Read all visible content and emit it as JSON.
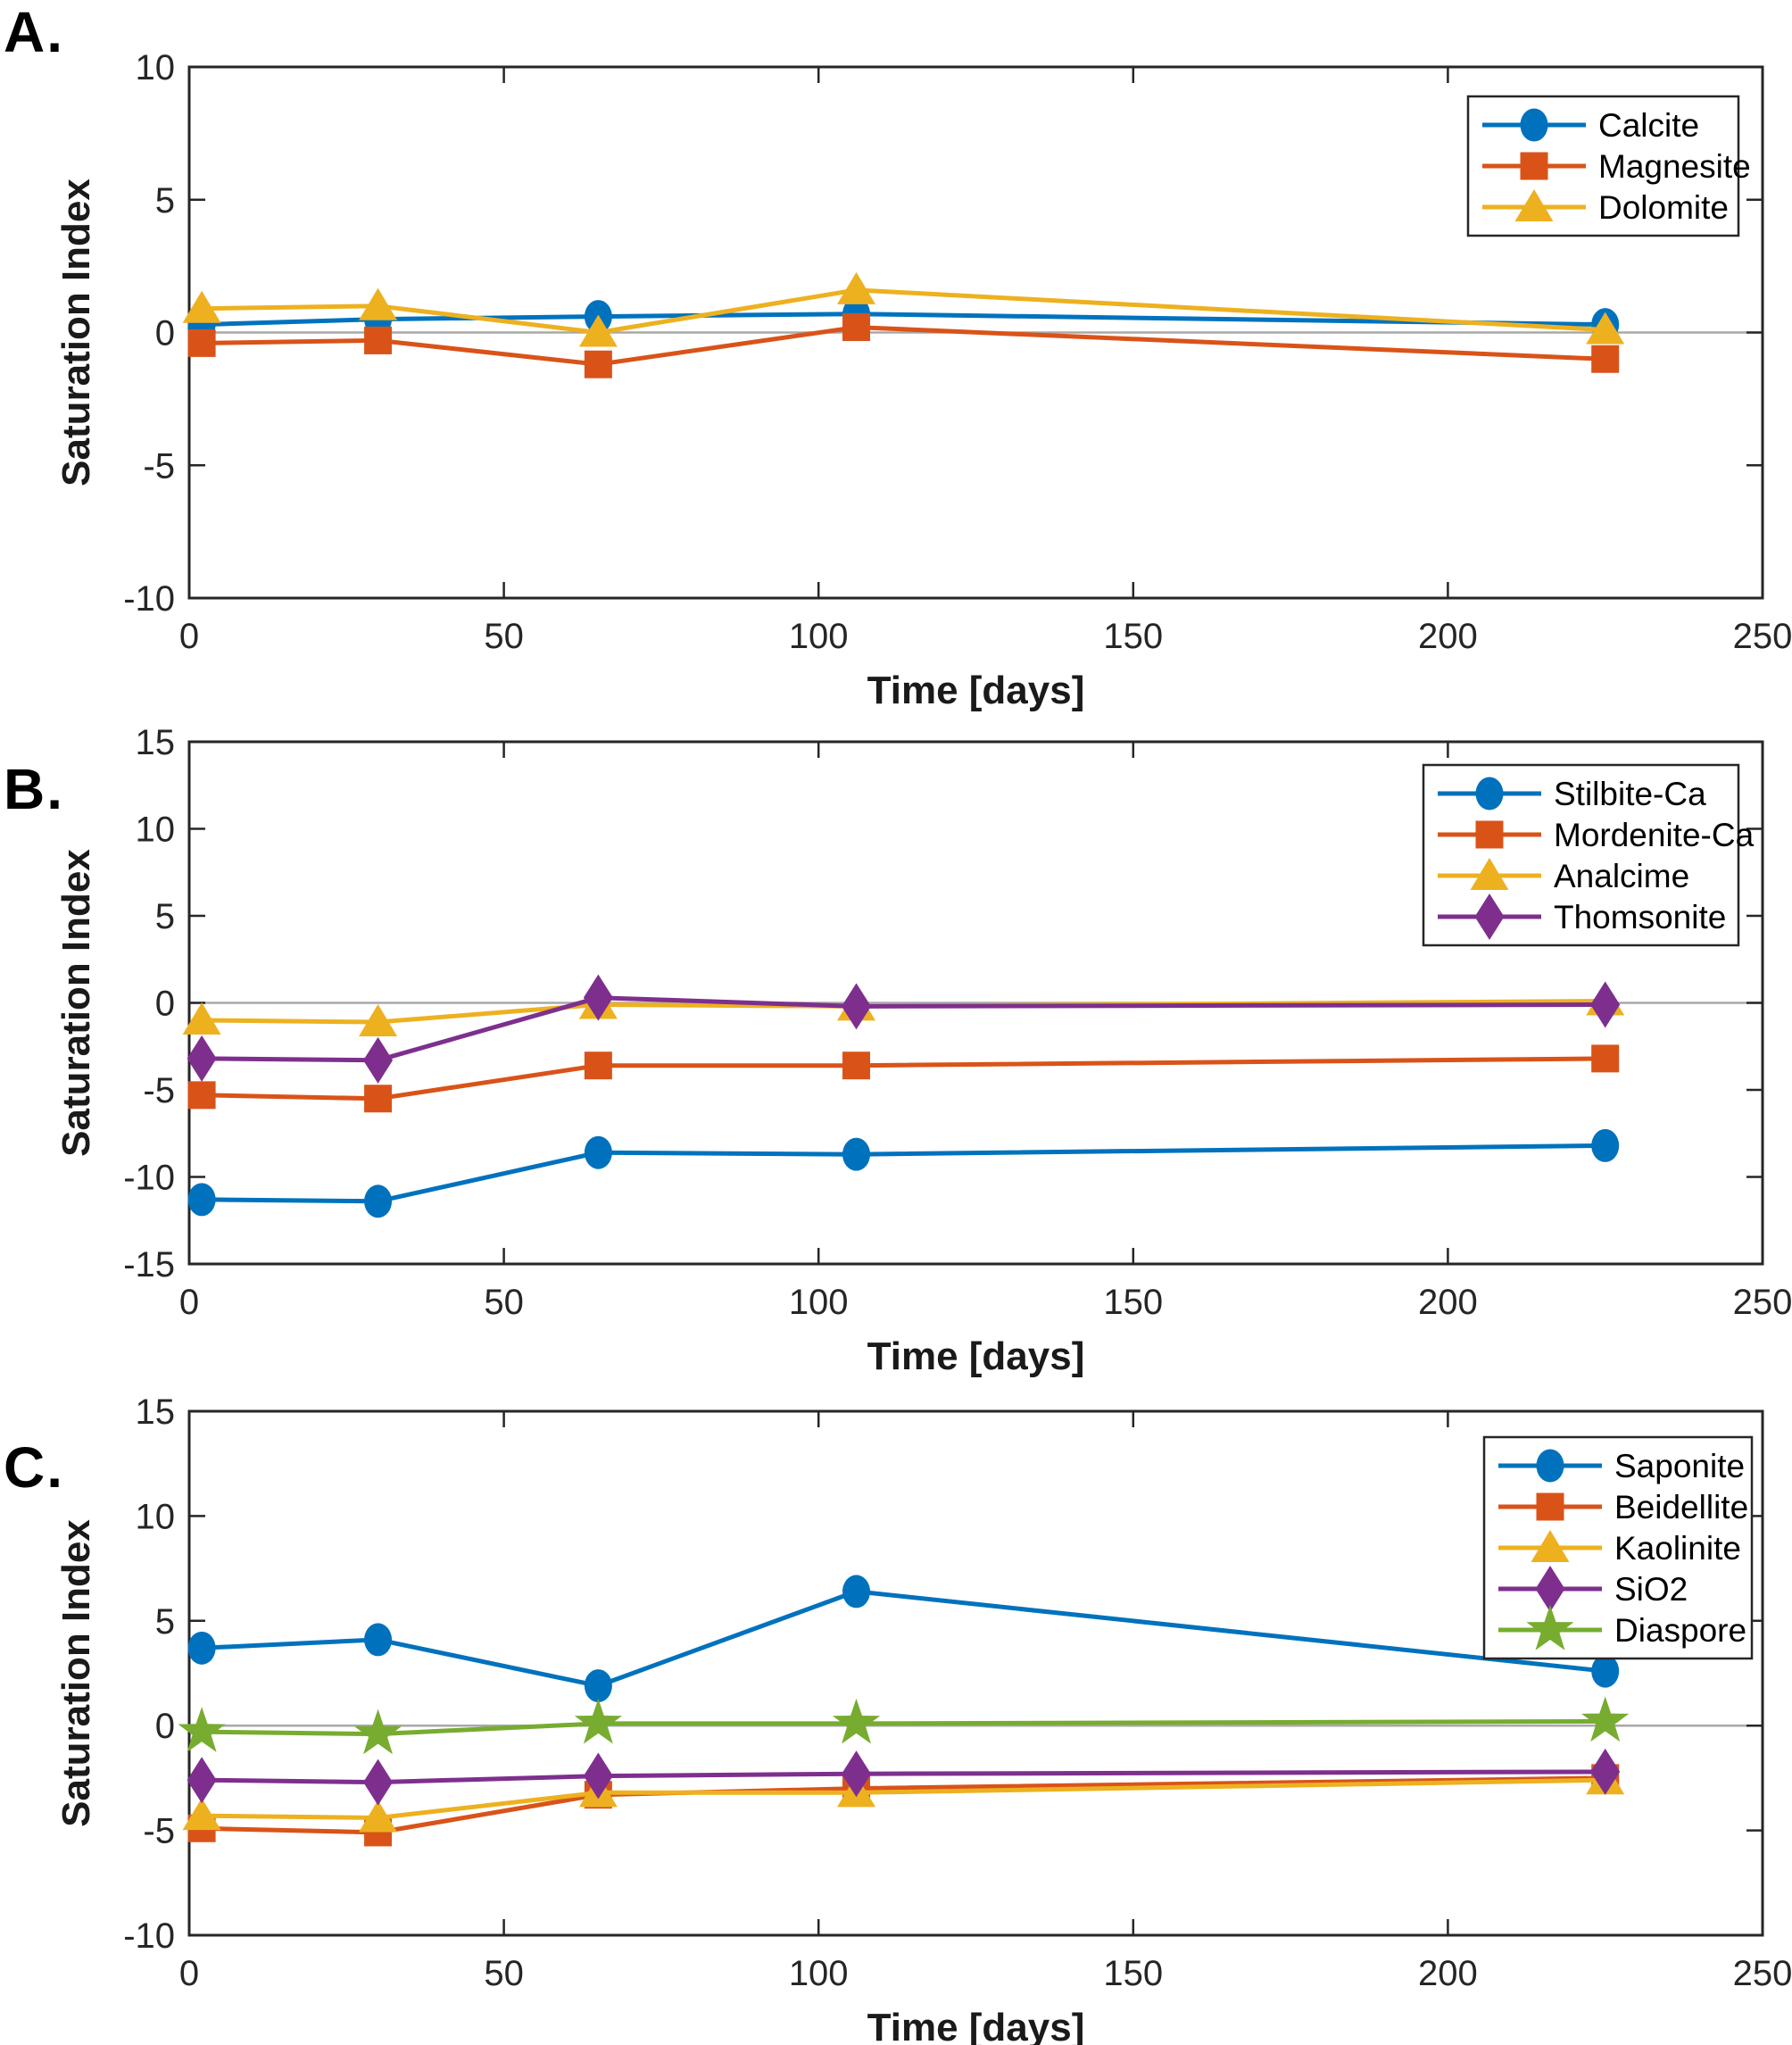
{
  "figure": {
    "background": "#ffffff",
    "axis_color": "#262626",
    "zero_line_color": "#a8a8a8",
    "panels": [
      {
        "label": "A."
      },
      {
        "label": "B."
      },
      {
        "label": "C."
      }
    ]
  },
  "chart_data": [
    {
      "type": "line",
      "panel": "A.",
      "title": "",
      "xlabel": "Time [days]",
      "ylabel": "Saturation Index",
      "xlim": [
        0,
        250
      ],
      "ylim": [
        -10,
        10
      ],
      "xticks": [
        0,
        50,
        100,
        150,
        200,
        250
      ],
      "yticks": [
        10,
        5,
        0,
        -5,
        -10
      ],
      "grid": false,
      "zero_line": true,
      "legend_position": "top-right",
      "x": [
        2,
        30,
        65,
        106,
        225
      ],
      "series": [
        {
          "name": "Calcite",
          "color": "#0072BD",
          "marker": "circle",
          "values": [
            0.3,
            0.5,
            0.6,
            0.7,
            0.3
          ]
        },
        {
          "name": "Magnesite",
          "color": "#D95319",
          "marker": "square",
          "values": [
            -0.4,
            -0.3,
            -1.2,
            0.2,
            -1.0
          ]
        },
        {
          "name": "Dolomite",
          "color": "#EDB120",
          "marker": "triangle",
          "values": [
            0.9,
            1.0,
            0.0,
            1.6,
            0.1
          ]
        }
      ]
    },
    {
      "type": "line",
      "panel": "B.",
      "title": "",
      "xlabel": "Time [days]",
      "ylabel": "Saturation Index",
      "xlim": [
        0,
        250
      ],
      "ylim": [
        -15,
        15
      ],
      "xticks": [
        0,
        50,
        100,
        150,
        200,
        250
      ],
      "yticks": [
        15,
        10,
        5,
        0,
        -5,
        -10,
        -15
      ],
      "grid": false,
      "zero_line": true,
      "legend_position": "top-right",
      "x": [
        2,
        30,
        65,
        106,
        225
      ],
      "series": [
        {
          "name": "Stilbite-Ca",
          "color": "#0072BD",
          "marker": "circle",
          "values": [
            -11.3,
            -11.4,
            -8.6,
            -8.7,
            -8.2
          ]
        },
        {
          "name": "Mordenite-Ca",
          "color": "#D95319",
          "marker": "square",
          "values": [
            -5.3,
            -5.5,
            -3.6,
            -3.6,
            -3.2
          ]
        },
        {
          "name": "Analcime",
          "color": "#EDB120",
          "marker": "triangle",
          "values": [
            -1.0,
            -1.1,
            -0.1,
            -0.2,
            0.1
          ]
        },
        {
          "name": "Thomsonite",
          "color": "#7E2F8E",
          "marker": "diamond",
          "values": [
            -3.2,
            -3.3,
            0.3,
            -0.2,
            -0.1
          ]
        }
      ]
    },
    {
      "type": "line",
      "panel": "C.",
      "title": "",
      "xlabel": "Time [days]",
      "ylabel": "Saturation Index",
      "xlim": [
        0,
        250
      ],
      "ylim": [
        -10,
        15
      ],
      "xticks": [
        0,
        50,
        100,
        150,
        200,
        250
      ],
      "yticks": [
        15,
        10,
        5,
        0,
        -5,
        -10
      ],
      "grid": false,
      "zero_line": true,
      "legend_position": "top-right",
      "x": [
        2,
        30,
        65,
        106,
        225
      ],
      "series": [
        {
          "name": "Saponite",
          "color": "#0072BD",
          "marker": "circle",
          "values": [
            3.7,
            4.1,
            1.9,
            6.4,
            2.6
          ]
        },
        {
          "name": "Beidellite",
          "color": "#D95319",
          "marker": "square",
          "values": [
            -4.9,
            -5.1,
            -3.3,
            -3.0,
            -2.5
          ]
        },
        {
          "name": "Kaolinite",
          "color": "#EDB120",
          "marker": "triangle",
          "values": [
            -4.3,
            -4.4,
            -3.2,
            -3.2,
            -2.6
          ]
        },
        {
          "name": "SiO2",
          "color": "#7E2F8E",
          "marker": "diamond",
          "values": [
            -2.6,
            -2.7,
            -2.4,
            -2.3,
            -2.2
          ]
        },
        {
          "name": "Diaspore",
          "color": "#77AC30",
          "marker": "star",
          "values": [
            -0.3,
            -0.4,
            0.1,
            0.1,
            0.2
          ]
        }
      ]
    }
  ]
}
